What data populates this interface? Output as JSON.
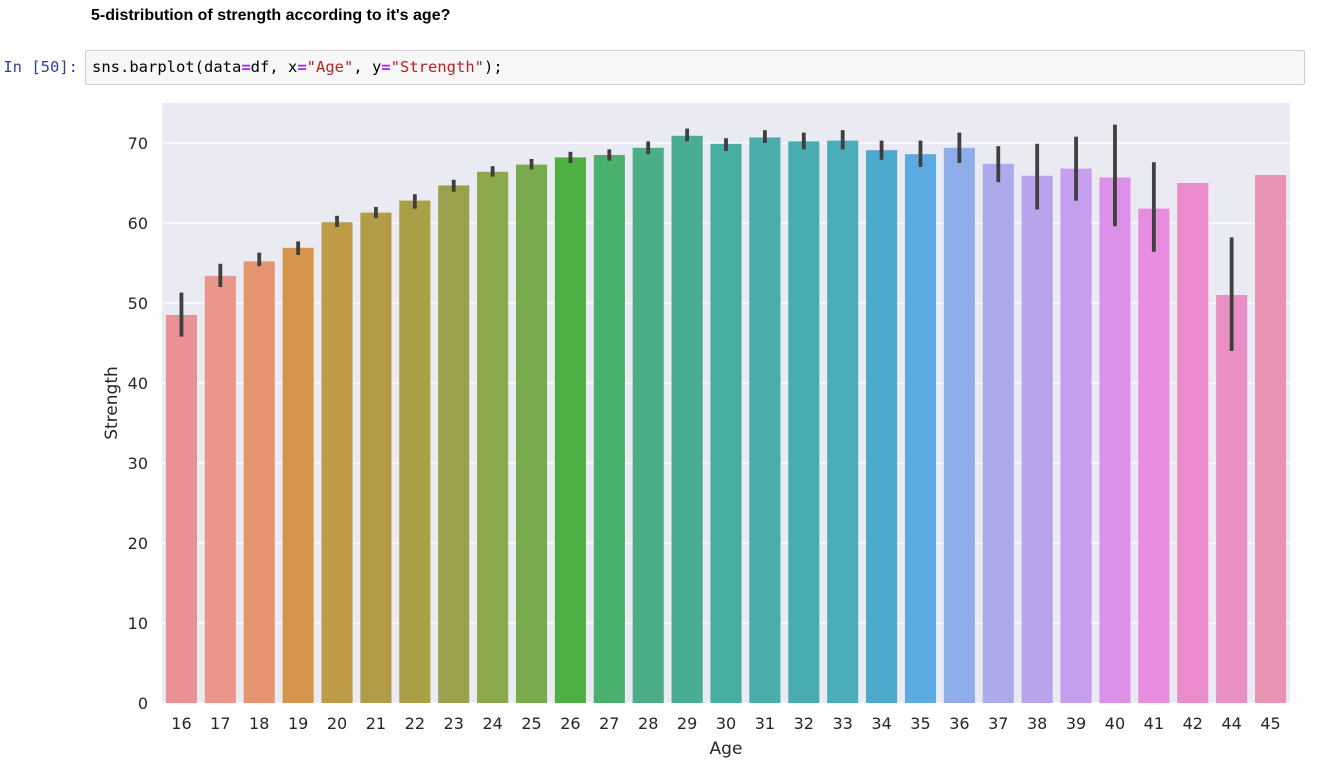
{
  "notebook": {
    "markdown_heading": "5-distribution of strength according to it's age?",
    "cell": {
      "prompt": "In [50]:",
      "code_tokens": [
        {
          "text": "sns.barplot(data",
          "kind": "plain"
        },
        {
          "text": "=",
          "kind": "op"
        },
        {
          "text": "df, x",
          "kind": "plain"
        },
        {
          "text": "=",
          "kind": "op"
        },
        {
          "text": "\"Age\"",
          "kind": "str"
        },
        {
          "text": ", y",
          "kind": "plain"
        },
        {
          "text": "=",
          "kind": "op"
        },
        {
          "text": "\"Strength\"",
          "kind": "str"
        },
        {
          "text": ");",
          "kind": "plain"
        }
      ]
    }
  },
  "chart_data": {
    "type": "bar",
    "title": "",
    "xlabel": "Age",
    "ylabel": "Strength",
    "ylim": [
      0,
      75
    ],
    "yticks": [
      0,
      10,
      20,
      30,
      40,
      50,
      60,
      70
    ],
    "grid": true,
    "background": "#eaeaf2",
    "categories": [
      "16",
      "17",
      "18",
      "19",
      "20",
      "21",
      "22",
      "23",
      "24",
      "25",
      "26",
      "27",
      "28",
      "29",
      "30",
      "31",
      "32",
      "33",
      "34",
      "35",
      "36",
      "37",
      "38",
      "39",
      "40",
      "41",
      "42",
      "44",
      "45"
    ],
    "values": [
      48.5,
      53.4,
      55.2,
      56.9,
      60.1,
      61.3,
      62.8,
      64.7,
      66.4,
      67.3,
      68.2,
      68.5,
      69.4,
      70.9,
      69.9,
      70.7,
      70.2,
      70.3,
      69.1,
      68.6,
      69.4,
      67.4,
      65.9,
      66.8,
      65.7,
      61.8,
      65.0,
      51.0,
      66.0
    ],
    "error_low": [
      45.8,
      52.0,
      54.6,
      56.0,
      59.5,
      60.6,
      61.8,
      63.9,
      65.8,
      66.7,
      67.5,
      67.8,
      68.6,
      70.2,
      69.0,
      70.0,
      69.2,
      69.2,
      67.9,
      67.0,
      67.5,
      65.1,
      61.7,
      62.8,
      59.6,
      56.4,
      65.0,
      44.0,
      66.0
    ],
    "error_high": [
      51.3,
      54.9,
      56.3,
      57.7,
      60.9,
      62.0,
      63.6,
      65.4,
      67.1,
      68.0,
      68.9,
      69.2,
      70.2,
      71.8,
      70.6,
      71.6,
      71.3,
      71.6,
      70.3,
      70.3,
      71.3,
      69.6,
      69.9,
      70.8,
      72.3,
      67.6,
      65.0,
      58.2,
      66.0
    ],
    "colors": [
      "#ec9098",
      "#ea968b",
      "#e69470",
      "#d6954c",
      "#bf9b47",
      "#b39c47",
      "#a99f47",
      "#9ba04a",
      "#8ba94b",
      "#78ab4b",
      "#4eb043",
      "#49b06d",
      "#4bae86",
      "#48ad94",
      "#47aea2",
      "#4aada9",
      "#49acb1",
      "#4bacba",
      "#4da9cc",
      "#5caae2",
      "#8daee8",
      "#abaaea",
      "#b9a3ec",
      "#c59eef",
      "#dc91e8",
      "#e78cde",
      "#ea8bcc",
      "#ea8fc3",
      "#e892b4"
    ]
  }
}
